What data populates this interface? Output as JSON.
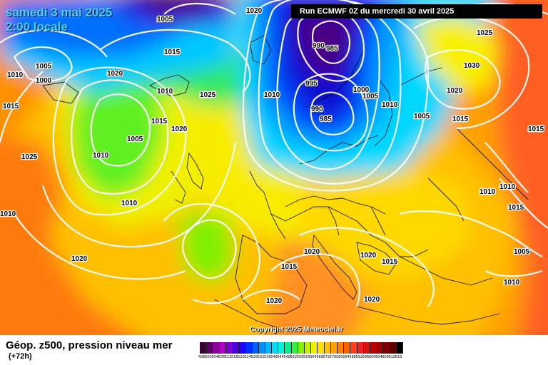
{
  "header": {
    "date_line": "samedi 3 mai 2025",
    "time_line": "2:00 locale",
    "run_label": "Run ECMWF 0Z du mercredi 30 avril 2025"
  },
  "footer": {
    "title": "Géop. z500, pression niveau mer",
    "lead": "(+72h)",
    "copyright": "Copyright 2025 Meteociel.fr"
  },
  "legend": {
    "values": [
      "496",
      "500",
      "504",
      "508",
      "512",
      "516",
      "520",
      "524",
      "528",
      "532",
      "536",
      "540",
      "544",
      "548",
      "552",
      "556",
      "560",
      "564",
      "568",
      "572",
      "576",
      "580",
      "584",
      "588",
      "592",
      "596",
      "600",
      "604",
      "608",
      "612",
      "616"
    ],
    "colors": [
      "#3a0032",
      "#5a0060",
      "#8a009a",
      "#b000c8",
      "#7a00d0",
      "#5000e0",
      "#2000ff",
      "#0030ff",
      "#0060ff",
      "#0090ff",
      "#00b8ff",
      "#00dcff",
      "#00f0d8",
      "#00f090",
      "#30f040",
      "#80f000",
      "#c0f000",
      "#f0f000",
      "#ffe000",
      "#ffc000",
      "#ffa000",
      "#ff8000",
      "#ff6000",
      "#ff4020",
      "#f02020",
      "#d81010",
      "#c00000",
      "#a00000",
      "#800000",
      "#600000",
      "#000000"
    ]
  },
  "isobar_labels": [
    {
      "text": "1005"
    },
    {
      "text": "1020"
    },
    {
      "text": "1015"
    },
    {
      "text": "1005"
    },
    {
      "text": "1010"
    },
    {
      "text": "1000"
    },
    {
      "text": "1015"
    },
    {
      "text": "1020"
    },
    {
      "text": "1010"
    },
    {
      "text": "1025"
    },
    {
      "text": "1015"
    },
    {
      "text": "1020"
    },
    {
      "text": "1005"
    },
    {
      "text": "1025"
    },
    {
      "text": "1010"
    },
    {
      "text": "1010"
    },
    {
      "text": "1010"
    },
    {
      "text": "990"
    },
    {
      "text": "985"
    },
    {
      "text": "995"
    },
    {
      "text": "990"
    },
    {
      "text": "985"
    },
    {
      "text": "1000"
    },
    {
      "text": "1005"
    },
    {
      "text": "1010"
    },
    {
      "text": "1005"
    },
    {
      "text": "1015"
    },
    {
      "text": "1025"
    },
    {
      "text": "1030"
    },
    {
      "text": "1020"
    },
    {
      "text": "1015"
    },
    {
      "text": "1010"
    },
    {
      "text": "1010"
    },
    {
      "text": "1015"
    },
    {
      "text": "1010"
    },
    {
      "text": "1020"
    },
    {
      "text": "1020"
    },
    {
      "text": "1020"
    },
    {
      "text": "1015"
    },
    {
      "text": "1015"
    },
    {
      "text": "1020"
    },
    {
      "text": "1005"
    },
    {
      "text": "1010"
    },
    {
      "text": "1020"
    }
  ]
}
